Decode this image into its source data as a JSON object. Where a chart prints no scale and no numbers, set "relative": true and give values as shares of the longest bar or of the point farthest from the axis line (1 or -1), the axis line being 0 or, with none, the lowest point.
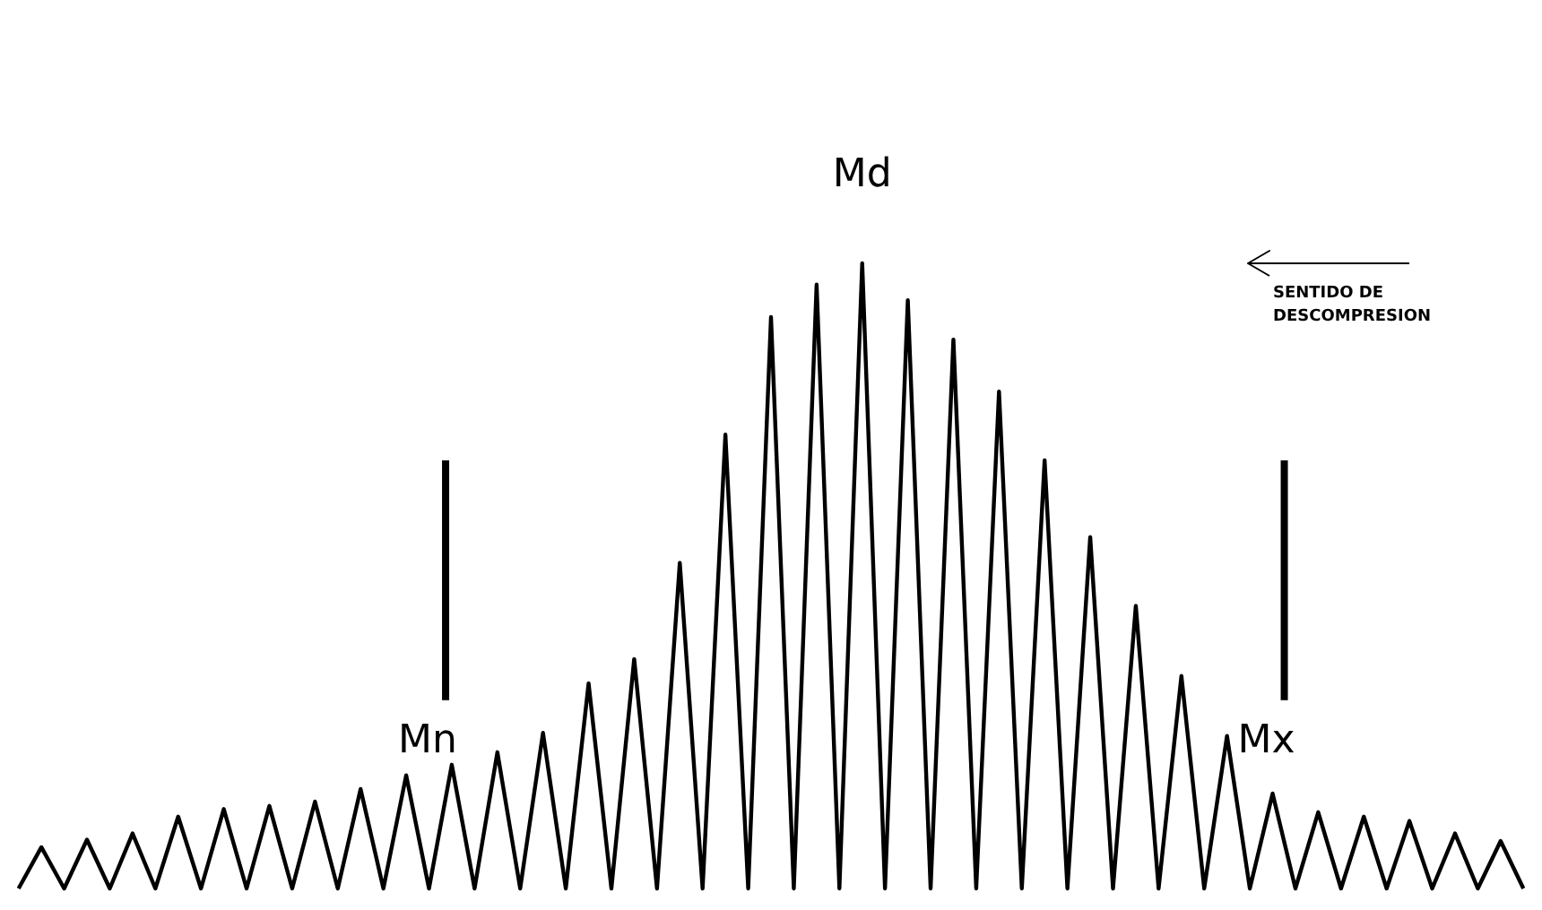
{
  "chart_data": {
    "type": "line",
    "relative": true,
    "tick_labels": false,
    "grid": false,
    "marker": "none",
    "line_style": "solid",
    "categories": [
      null,
      null,
      null,
      null,
      null,
      null,
      null,
      null,
      null,
      null,
      null,
      null,
      null,
      null,
      null,
      null,
      null,
      null,
      null,
      null,
      null,
      null,
      null,
      null,
      null,
      null,
      null,
      null,
      null,
      null,
      null,
      null,
      null,
      null,
      null,
      null,
      null,
      null,
      null,
      null,
      null,
      null,
      null,
      null,
      null,
      null,
      null,
      null,
      null,
      null,
      null,
      null,
      null,
      null,
      null,
      null,
      null,
      null,
      null,
      null,
      null,
      null,
      null,
      null,
      null,
      null,
      null
    ],
    "series": [
      {
        "color": "#000000",
        "values": [
          0,
          0.066,
          0,
          0.078,
          0,
          0.088,
          0,
          0.115,
          0,
          0.127,
          0,
          0.132,
          0,
          0.139,
          0,
          0.159,
          0,
          0.181,
          0,
          0.198,
          0,
          0.218,
          0,
          0.249,
          0,
          0.328,
          0,
          0.367,
          0,
          0.521,
          0,
          0.726,
          0,
          0.914,
          0,
          0.966,
          0,
          1,
          0,
          0.941,
          0,
          0.878,
          0,
          0.795,
          0,
          0.685,
          0,
          0.562,
          0,
          0.452,
          0,
          0.34,
          0,
          0.244,
          0,
          0.152,
          0,
          0.122,
          0,
          0.115,
          0,
          0.108,
          0,
          0.088,
          0,
          0.076,
          0
        ]
      }
    ],
    "annotations": [
      "Md",
      "Mn",
      "Mx",
      "SENTIDO DE\nDESCOMPRESION"
    ]
  }
}
